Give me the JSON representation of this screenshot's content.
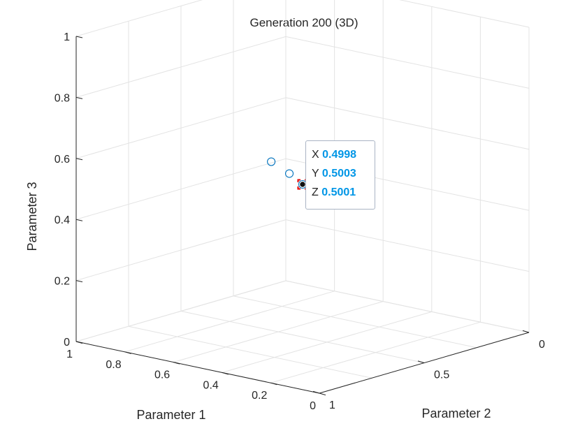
{
  "chart_data": {
    "type": "scatter3d",
    "title": "Generation 200 (3D)",
    "xlabel": "Parameter 1",
    "ylabel": "Parameter 2",
    "zlabel": "Parameter 3",
    "xlim": [
      0,
      1
    ],
    "ylim": [
      0,
      1
    ],
    "zlim": [
      0,
      1
    ],
    "xticks": [
      "0",
      "0.2",
      "0.4",
      "0.6",
      "0.8",
      "1"
    ],
    "yticks": [
      "0",
      "0.5",
      "1"
    ],
    "zticks": [
      "0",
      "0.2",
      "0.4",
      "0.6",
      "0.8",
      "1"
    ],
    "grid": true,
    "marker": "open-circle",
    "marker_color": "#0072bd",
    "series": [
      {
        "points": [
          {
            "x": 0.56,
            "y": 0.58,
            "z": 0.58
          },
          {
            "x": 0.52,
            "y": 0.54,
            "z": 0.54
          },
          {
            "x": 0.4998,
            "y": 0.5003,
            "z": 0.5001
          },
          {
            "x": 0.46,
            "y": 0.44,
            "z": 0.47
          },
          {
            "x": 0.42,
            "y": 0.52,
            "z": 0.45
          }
        ]
      }
    ],
    "datatip": {
      "x_label": "X",
      "x_value": "0.4998",
      "y_label": "Y",
      "y_value": "0.5003",
      "z_label": "Z",
      "z_value": "0.5001",
      "highlight_color": "#e60000"
    }
  }
}
